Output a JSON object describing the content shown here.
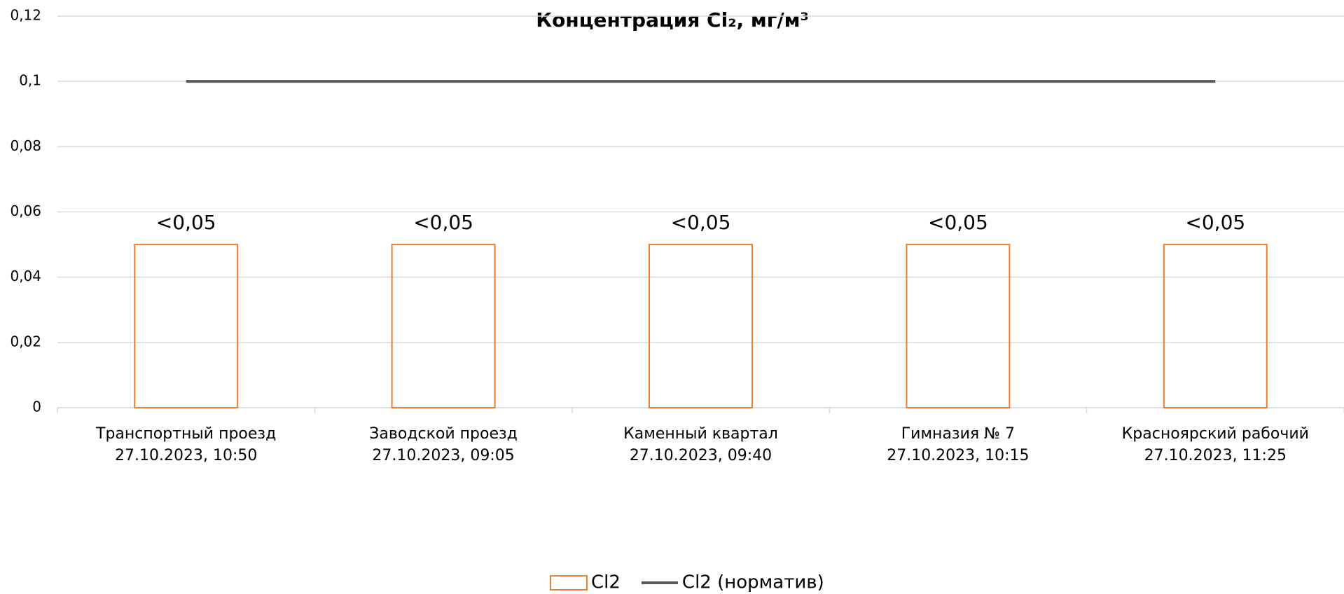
{
  "chart_data": {
    "type": "bar",
    "title": "Концентрация Cl₂, мг/м³",
    "categories": [
      "Транспортный проезд\n27.10.2023, 10:50",
      "Заводской проезд\n27.10.2023, 09:05",
      "Каменный квартал\n27.10.2023, 09:40",
      "Гимназия № 7\n27.10.2023, 10:15",
      "Красноярский рабочий\n27.10.2023, 11:25"
    ],
    "series": [
      {
        "name": "Cl2",
        "type": "bar",
        "color": "#ed7d31",
        "values": [
          0.05,
          0.05,
          0.05,
          0.05,
          0.05
        ],
        "value_labels": [
          "<0,05",
          "<0,05",
          "<0,05",
          "<0,05",
          "<0,05"
        ]
      },
      {
        "name": "Cl2 (норматив)",
        "type": "line",
        "color": "#595959",
        "values": [
          0.1,
          0.1,
          0.1,
          0.1,
          0.1
        ]
      }
    ],
    "ylim": [
      0,
      0.12
    ],
    "yticks": [
      0,
      {
        "value": 0.02,
        "label": "0,02"
      },
      {
        "value": 0.04,
        "label": "0,04"
      },
      {
        "value": 0.06,
        "label": "0,06"
      },
      {
        "value": 0.08,
        "label": "0,08"
      },
      {
        "value": 0.1,
        "label": "0,1"
      },
      {
        "value": 0.12,
        "label": "0,12"
      }
    ],
    "grid": true,
    "legend": "bottom"
  }
}
